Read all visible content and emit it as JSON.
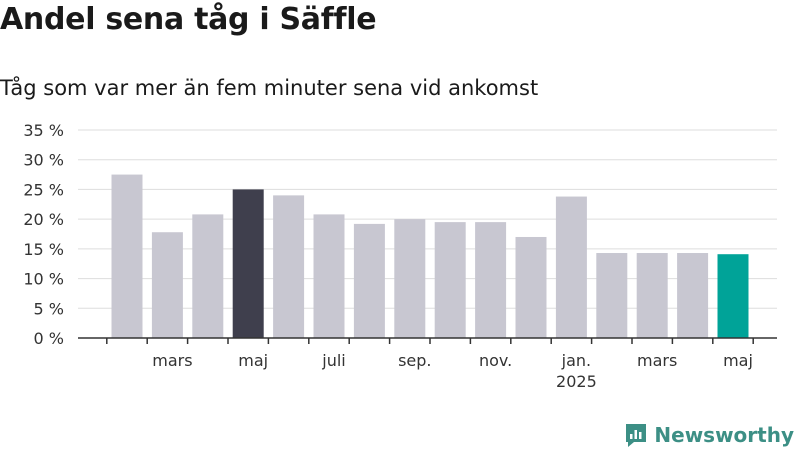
{
  "title": "Andel sena tåg i Säffle",
  "subtitle": "Tåg som var mer än fem minuter sena vid ankomst",
  "brand": {
    "name": "Newsworthy",
    "icon": "newsworthy-logo-icon",
    "color": "#3c8f85"
  },
  "chart_data": {
    "type": "bar",
    "title": "Andel sena tåg i Säffle",
    "subtitle": "Tåg som var mer än fem minuter sena vid ankomst",
    "xlabel": "",
    "ylabel": "",
    "ylim": [
      0,
      35
    ],
    "y_ticks": [
      "0 %",
      "5 %",
      "10 %",
      "15 %",
      "20 %",
      "25 %",
      "30 %",
      "35 %"
    ],
    "grid": true,
    "x_tick_labels": [
      {
        "index": 1,
        "label": "mars"
      },
      {
        "index": 3,
        "label": "maj"
      },
      {
        "index": 5,
        "label": "juli"
      },
      {
        "index": 7,
        "label": "sep."
      },
      {
        "index": 9,
        "label": "nov."
      },
      {
        "index": 11,
        "label": "jan.",
        "sublabel": "2025"
      },
      {
        "index": 13,
        "label": "mars"
      },
      {
        "index": 15,
        "label": "maj"
      }
    ],
    "values": [
      27.5,
      17.8,
      20.8,
      25.0,
      24.0,
      20.8,
      19.2,
      20.0,
      19.5,
      19.5,
      17.0,
      23.8,
      14.3,
      14.3,
      14.3,
      14.1
    ],
    "highlight": {
      "3": "#3f3f4d",
      "15": "#00a398"
    },
    "colors": {
      "default_bar": "#c8c7d1",
      "grid": "#dddddd",
      "axis": "#333333"
    }
  }
}
